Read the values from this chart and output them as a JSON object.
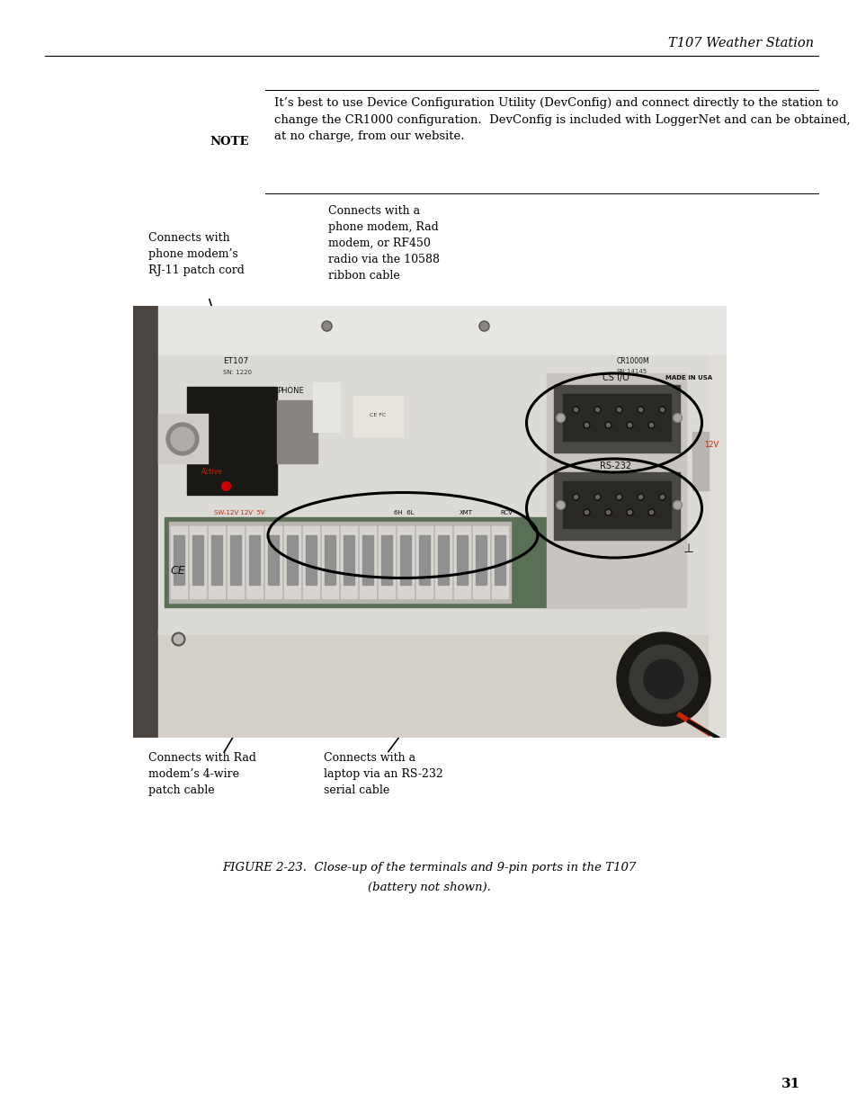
{
  "page_title": "T107 Weather Station",
  "page_number": "31",
  "note_label": "NOTE",
  "note_text": "It’s best to use Device Configuration Utility (DevConfig) and connect directly to the station to change the CR1000 configuration.  DevConfig is included with LoggerNet and can be obtained, at no charge, from our website.",
  "caption_line1": "FIGURE 2-23.  Close-up of the terminals and 9-pin ports in the T107",
  "caption_line2": "(battery not shown).",
  "annotation_1_text": "Connects with\nphone modem’s\nRJ-11 patch cord",
  "annotation_2_text": "Connects with a\nphone modem, Rad\nmodem, or RF450\nradio via the 10588\nribbon cable",
  "annotation_3_text": "Connects with Rad\nmodem’s 4-wire\npatch cable",
  "annotation_4_text": "Connects with a\nlaptop via an RS-232\nserial cable",
  "bg_color": "#ffffff",
  "text_color": "#000000",
  "font_size_note": 9.5,
  "font_size_annotation": 9.0,
  "font_size_caption": 9.5,
  "font_size_page_title": 10.5,
  "font_size_page_num": 11.0
}
